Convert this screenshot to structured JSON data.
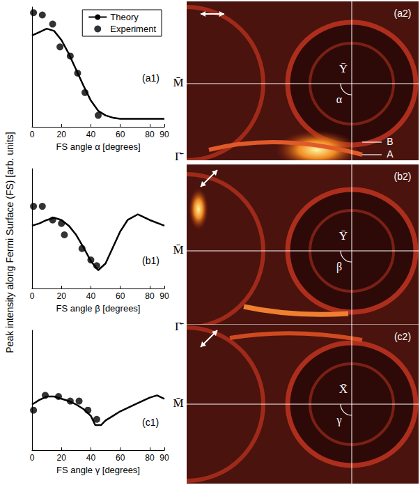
{
  "ylabel": "Peak intensity along Fermi Surface (FS) [arb. units]",
  "chart_data": [
    {
      "type": "line",
      "panel_label": "(a1)",
      "xlabel": "FS angle α [degrees]",
      "xlim": [
        0,
        90
      ],
      "xticks": [
        0,
        20,
        40,
        60,
        80
      ],
      "ylim": [
        0,
        1.05
      ],
      "tick_labels": "x",
      "grid": false,
      "legend": "upper right",
      "series": [
        {
          "name": "Theory",
          "type": "line",
          "color": "#000000",
          "marker": "none",
          "line_style": "solid",
          "x": [
            0,
            5,
            10,
            15,
            20,
            25,
            30,
            35,
            40,
            45,
            50,
            55,
            60,
            70,
            80,
            90
          ],
          "values": [
            0.8,
            0.83,
            0.86,
            0.84,
            0.76,
            0.64,
            0.5,
            0.36,
            0.23,
            0.14,
            0.1,
            0.08,
            0.07,
            0.07,
            0.07,
            0.07
          ]
        },
        {
          "name": "Experiment",
          "type": "scatter",
          "color": "#000000",
          "marker": "circle",
          "x": [
            1,
            7,
            14,
            19,
            26,
            31,
            36,
            45
          ],
          "values": [
            1.0,
            0.98,
            0.9,
            0.7,
            0.62,
            0.47,
            0.3,
            0.1
          ]
        }
      ]
    },
    {
      "type": "line",
      "panel_label": "(b1)",
      "xlabel": "FS angle β [degrees]",
      "xlim": [
        0,
        90
      ],
      "xticks": [
        0,
        20,
        40,
        60,
        80
      ],
      "ylim": [
        0,
        1.05
      ],
      "tick_labels": "x",
      "grid": false,
      "series": [
        {
          "name": "Theory",
          "type": "line",
          "color": "#000000",
          "marker": "none",
          "line_style": "solid",
          "x": [
            0,
            5,
            10,
            15,
            20,
            25,
            30,
            35,
            40,
            45,
            50,
            55,
            60,
            65,
            72,
            80,
            90
          ],
          "values": [
            0.55,
            0.57,
            0.6,
            0.62,
            0.6,
            0.55,
            0.47,
            0.36,
            0.24,
            0.16,
            0.22,
            0.36,
            0.5,
            0.6,
            0.65,
            0.6,
            0.55
          ]
        },
        {
          "name": "Experiment",
          "type": "scatter",
          "color": "#000000",
          "marker": "circle",
          "x": [
            1,
            7,
            14,
            20,
            22,
            34,
            40,
            44
          ],
          "values": [
            0.72,
            0.72,
            0.6,
            0.57,
            0.47,
            0.35,
            0.25,
            0.2
          ]
        }
      ]
    },
    {
      "type": "line",
      "panel_label": "(c1)",
      "xlabel": "FS angle γ [degrees]",
      "xlim": [
        0,
        90
      ],
      "xticks": [
        0,
        20,
        40,
        60,
        80
      ],
      "ylim": [
        0,
        1.05
      ],
      "tick_labels": "x",
      "grid": false,
      "series": [
        {
          "name": "Theory",
          "type": "line",
          "color": "#000000",
          "marker": "none",
          "line_style": "solid",
          "x": [
            0,
            5,
            10,
            15,
            20,
            25,
            30,
            35,
            40,
            43,
            47,
            50,
            55,
            60,
            70,
            80,
            85,
            90
          ],
          "values": [
            0.4,
            0.44,
            0.47,
            0.47,
            0.45,
            0.43,
            0.4,
            0.36,
            0.3,
            0.22,
            0.22,
            0.26,
            0.3,
            0.34,
            0.4,
            0.46,
            0.48,
            0.45
          ]
        },
        {
          "name": "Experiment",
          "type": "scatter",
          "color": "#000000",
          "marker": "circle",
          "x": [
            1,
            9,
            18,
            26,
            32,
            38,
            44
          ],
          "values": [
            0.35,
            0.48,
            0.47,
            0.43,
            0.43,
            0.35,
            0.27
          ]
        }
      ]
    }
  ],
  "maps": [
    {
      "panel_label": "(a2)",
      "center": "Ȳ",
      "angle": "α",
      "left_labels": [
        "M̄",
        "Γ̄"
      ],
      "bands": [
        "B",
        "A"
      ]
    },
    {
      "panel_label": "(b2)",
      "center": "Ȳ",
      "angle": "β",
      "left_labels": [
        "M̄",
        "Γ̄"
      ],
      "bands": []
    },
    {
      "panel_label": "(c2)",
      "center": "X̄",
      "angle": "γ",
      "left_labels": [
        "M̄"
      ],
      "bands": []
    }
  ]
}
